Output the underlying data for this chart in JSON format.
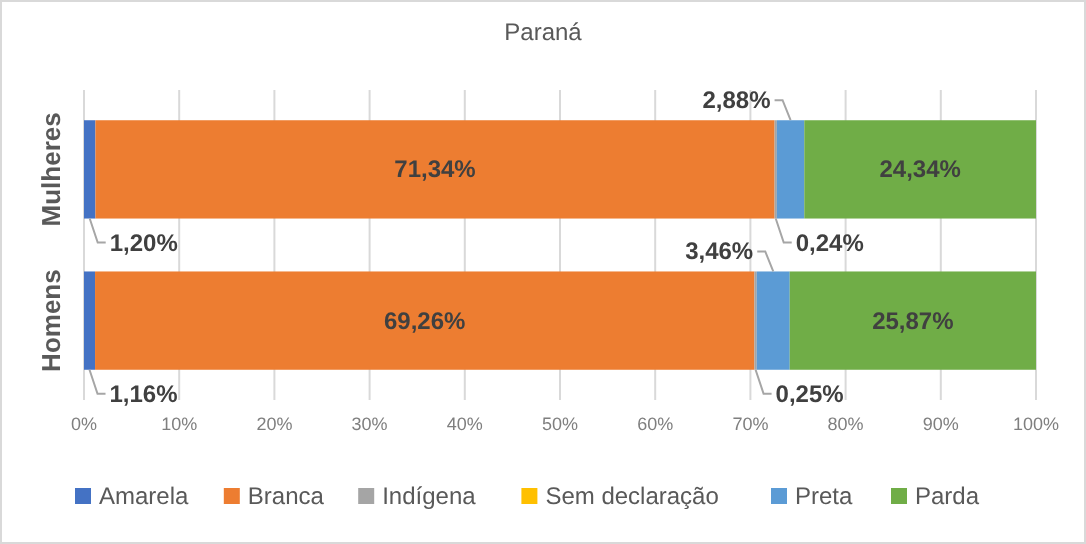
{
  "chart_data": {
    "type": "bar",
    "title": "Paraná",
    "orientation": "horizontal",
    "stacked": true,
    "categories": [
      "Mulheres",
      "Homens"
    ],
    "series": [
      {
        "name": "Amarela",
        "color": "#4472c4",
        "values": [
          1.2,
          1.16
        ],
        "value_labels": [
          "1,20%",
          "1,16%"
        ]
      },
      {
        "name": "Branca",
        "color": "#ed7d31",
        "values": [
          71.34,
          69.26
        ],
        "value_labels": [
          "71,34%",
          "69,26%"
        ]
      },
      {
        "name": "Indígena",
        "color": "#a5a5a5",
        "values": [
          0.24,
          0.25
        ],
        "value_labels": [
          "0,24%",
          "0,25%"
        ]
      },
      {
        "name": "Sem declaração",
        "color": "#ffc000",
        "values": [
          0,
          0
        ],
        "value_labels": [
          null,
          null
        ]
      },
      {
        "name": "Preta",
        "color": "#5b9bd5",
        "values": [
          2.88,
          3.46
        ],
        "value_labels": [
          "2,88%",
          "3,46%"
        ]
      },
      {
        "name": "Parda",
        "color": "#70ad47",
        "values": [
          24.34,
          25.87
        ],
        "value_labels": [
          "24,34%",
          "25,87%"
        ]
      }
    ],
    "xlim": [
      0,
      100
    ],
    "xticks": [
      {
        "value": 0,
        "label": "0%"
      },
      {
        "value": 10,
        "label": "10%"
      },
      {
        "value": 20,
        "label": "20%"
      },
      {
        "value": 30,
        "label": "30%"
      },
      {
        "value": 40,
        "label": "40%"
      },
      {
        "value": 50,
        "label": "50%"
      },
      {
        "value": 60,
        "label": "60%"
      },
      {
        "value": 70,
        "label": "70%"
      },
      {
        "value": 80,
        "label": "80%"
      },
      {
        "value": 90,
        "label": "90%"
      },
      {
        "value": 100,
        "label": "100%"
      }
    ],
    "grid": "x",
    "legend": "bottom"
  }
}
